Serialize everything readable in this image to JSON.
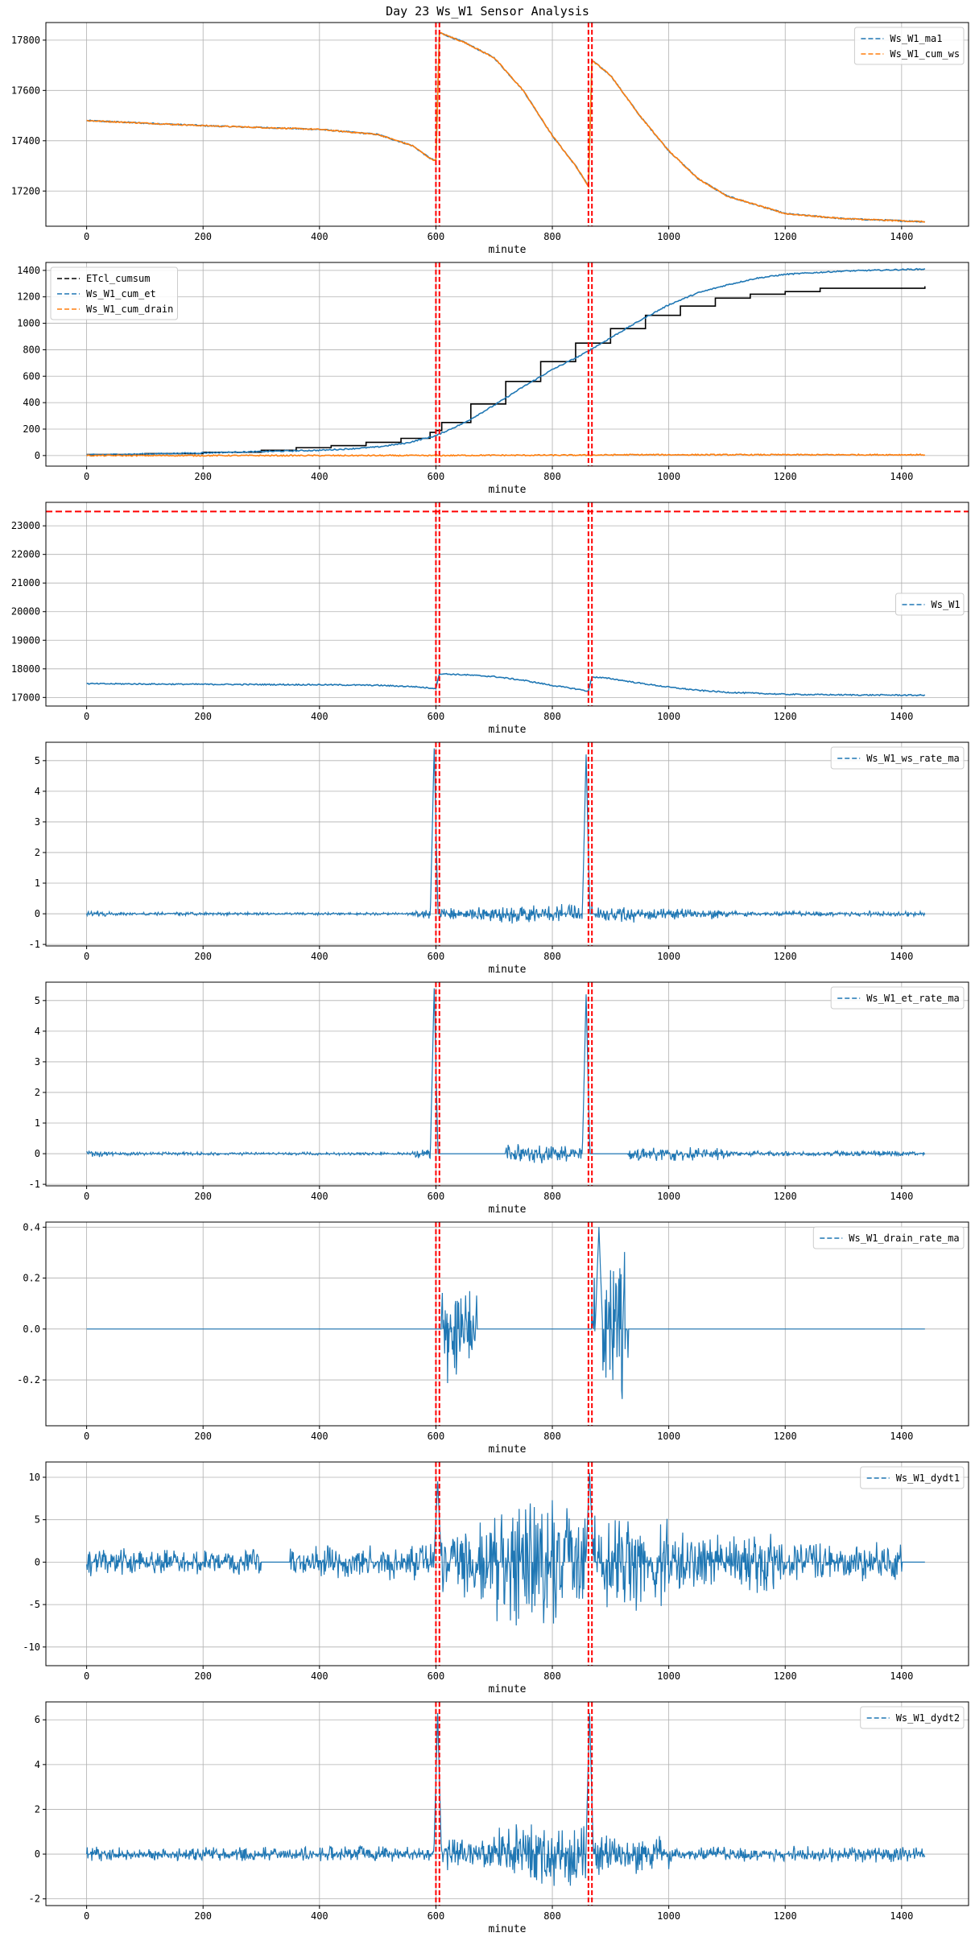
{
  "page_title": "Day 23 Ws_W1 Sensor Analysis",
  "colors": {
    "blue": "#1f77b4",
    "orange": "#ff7f0e",
    "black": "#000000",
    "red": "#ff0000",
    "grid": "#b0b0b0"
  },
  "chart_data": [
    {
      "type": "line",
      "xlabel": "minute",
      "xlim": [
        -70,
        1515
      ],
      "xticks": [
        0,
        200,
        400,
        600,
        800,
        1000,
        1200,
        1400
      ],
      "ylim": [
        17060,
        17870
      ],
      "yticks": [
        17200,
        17400,
        17600,
        17800
      ],
      "legend_position": "upper right",
      "vlines": [
        600,
        606,
        862,
        868
      ],
      "series": [
        {
          "name": "Ws_W1_ma1",
          "color": "#1f77b4",
          "style": "dashed",
          "points": [
            [
              0,
              17480
            ],
            [
              200,
              17460
            ],
            [
              400,
              17445
            ],
            [
              500,
              17425
            ],
            [
              560,
              17380
            ],
            [
              590,
              17330
            ],
            [
              600,
              17320
            ],
            [
              606,
              17830
            ],
            [
              650,
              17790
            ],
            [
              700,
              17730
            ],
            [
              750,
              17600
            ],
            [
              800,
              17420
            ],
            [
              840,
              17300
            ],
            [
              862,
              17220
            ],
            [
              868,
              17720
            ],
            [
              900,
              17660
            ],
            [
              950,
              17500
            ],
            [
              1000,
              17360
            ],
            [
              1050,
              17250
            ],
            [
              1100,
              17180
            ],
            [
              1200,
              17110
            ],
            [
              1300,
              17090
            ],
            [
              1440,
              17078
            ]
          ]
        },
        {
          "name": "Ws_W1_cum_ws",
          "color": "#ff7f0e",
          "style": "dashed",
          "points": [
            [
              0,
              17480
            ],
            [
              200,
              17460
            ],
            [
              400,
              17445
            ],
            [
              500,
              17425
            ],
            [
              560,
              17380
            ],
            [
              590,
              17330
            ],
            [
              600,
              17320
            ],
            [
              606,
              17830
            ],
            [
              650,
              17790
            ],
            [
              700,
              17730
            ],
            [
              750,
              17600
            ],
            [
              800,
              17420
            ],
            [
              840,
              17300
            ],
            [
              862,
              17220
            ],
            [
              868,
              17720
            ],
            [
              900,
              17660
            ],
            [
              950,
              17500
            ],
            [
              1000,
              17360
            ],
            [
              1050,
              17250
            ],
            [
              1100,
              17180
            ],
            [
              1200,
              17110
            ],
            [
              1300,
              17090
            ],
            [
              1440,
              17078
            ]
          ]
        }
      ]
    },
    {
      "type": "line",
      "xlabel": "minute",
      "xlim": [
        -70,
        1515
      ],
      "xticks": [
        0,
        200,
        400,
        600,
        800,
        1000,
        1200,
        1400
      ],
      "ylim": [
        -80,
        1460
      ],
      "yticks": [
        0,
        200,
        400,
        600,
        800,
        1000,
        1200,
        1400
      ],
      "legend_position": "upper left",
      "vlines": [
        600,
        606,
        862,
        868
      ],
      "series": [
        {
          "name": "ETcl_cumsum",
          "color": "#000000",
          "style": "dashed",
          "steps": [
            [
              0,
              8
            ],
            [
              100,
              15
            ],
            [
              200,
              25
            ],
            [
              300,
              40
            ],
            [
              360,
              60
            ],
            [
              420,
              75
            ],
            [
              480,
              100
            ],
            [
              540,
              130
            ],
            [
              590,
              175
            ],
            [
              600,
              190
            ],
            [
              610,
              250
            ],
            [
              660,
              390
            ],
            [
              720,
              560
            ],
            [
              780,
              710
            ],
            [
              840,
              850
            ],
            [
              900,
              960
            ],
            [
              960,
              1060
            ],
            [
              1020,
              1130
            ],
            [
              1080,
              1190
            ],
            [
              1140,
              1220
            ],
            [
              1200,
              1240
            ],
            [
              1260,
              1265
            ],
            [
              1440,
              1280
            ]
          ]
        },
        {
          "name": "Ws_W1_cum_et",
          "color": "#1f77b4",
          "style": "dashed",
          "points": [
            [
              0,
              5
            ],
            [
              100,
              12
            ],
            [
              200,
              20
            ],
            [
              300,
              30
            ],
            [
              400,
              40
            ],
            [
              450,
              50
            ],
            [
              500,
              65
            ],
            [
              550,
              95
            ],
            [
              600,
              150
            ],
            [
              650,
              250
            ],
            [
              700,
              380
            ],
            [
              750,
              520
            ],
            [
              800,
              650
            ],
            [
              850,
              760
            ],
            [
              900,
              890
            ],
            [
              950,
              1020
            ],
            [
              1000,
              1140
            ],
            [
              1050,
              1230
            ],
            [
              1100,
              1290
            ],
            [
              1150,
              1340
            ],
            [
              1200,
              1370
            ],
            [
              1300,
              1395
            ],
            [
              1440,
              1410
            ]
          ]
        },
        {
          "name": "Ws_W1_cum_drain",
          "color": "#ff7f0e",
          "style": "dashed",
          "points": [
            [
              0,
              0
            ],
            [
              600,
              0
            ],
            [
              670,
              2
            ],
            [
              860,
              3
            ],
            [
              930,
              6
            ],
            [
              1440,
              6
            ]
          ]
        }
      ]
    },
    {
      "type": "line",
      "xlabel": "minute",
      "xlim": [
        -70,
        1515
      ],
      "xticks": [
        0,
        200,
        400,
        600,
        800,
        1000,
        1200,
        1400
      ],
      "ylim": [
        16700,
        23820
      ],
      "yticks": [
        17000,
        18000,
        19000,
        20000,
        21000,
        22000,
        23000
      ],
      "legend_position": "center right",
      "vlines": [
        600,
        606,
        862,
        868
      ],
      "hlines": [
        23500
      ],
      "series": [
        {
          "name": "Ws_W1",
          "color": "#1f77b4",
          "style": "dashed",
          "points": [
            [
              0,
              17480
            ],
            [
              200,
              17460
            ],
            [
              400,
              17445
            ],
            [
              500,
              17425
            ],
            [
              560,
              17380
            ],
            [
              590,
              17330
            ],
            [
              600,
              17320
            ],
            [
              606,
              17830
            ],
            [
              650,
              17790
            ],
            [
              700,
              17730
            ],
            [
              750,
              17600
            ],
            [
              800,
              17420
            ],
            [
              840,
              17300
            ],
            [
              862,
              17220
            ],
            [
              868,
              17720
            ],
            [
              900,
              17660
            ],
            [
              950,
              17500
            ],
            [
              1000,
              17360
            ],
            [
              1050,
              17250
            ],
            [
              1100,
              17180
            ],
            [
              1200,
              17110
            ],
            [
              1300,
              17090
            ],
            [
              1440,
              17078
            ]
          ]
        }
      ]
    },
    {
      "type": "line",
      "xlabel": "minute",
      "xlim": [
        -70,
        1515
      ],
      "xticks": [
        0,
        200,
        400,
        600,
        800,
        1000,
        1200,
        1400
      ],
      "ylim": [
        -1.05,
        5.6
      ],
      "yticks": [
        -1,
        0,
        1,
        2,
        3,
        4,
        5
      ],
      "legend_position": "upper right",
      "vlines": [
        600,
        606,
        862,
        868
      ],
      "series": [
        {
          "name": "Ws_W1_ws_rate_ma",
          "color": "#1f77b4",
          "style": "dashed",
          "noise": [
            [
              0,
              40,
              0.12
            ],
            [
              40,
              300,
              0.06
            ],
            [
              300,
              560,
              0.05
            ],
            [
              560,
              600,
              0.18
            ],
            [
              606,
              700,
              0.25
            ],
            [
              700,
              862,
              0.35
            ],
            [
              868,
              940,
              0.3
            ],
            [
              940,
              1100,
              0.2
            ],
            [
              1100,
              1440,
              0.1
            ]
          ],
          "spikes": [
            [
              597,
              5.4
            ],
            [
              858,
              5.2
            ]
          ]
        }
      ]
    },
    {
      "type": "line",
      "xlabel": "minute",
      "xlim": [
        -70,
        1515
      ],
      "xticks": [
        0,
        200,
        400,
        600,
        800,
        1000,
        1200,
        1400
      ],
      "ylim": [
        -1.05,
        5.6
      ],
      "yticks": [
        -1,
        0,
        1,
        2,
        3,
        4,
        5
      ],
      "legend_position": "upper right",
      "vlines": [
        600,
        606,
        862,
        868
      ],
      "series": [
        {
          "name": "Ws_W1_et_rate_ma",
          "color": "#1f77b4",
          "style": "dashed",
          "noise": [
            [
              0,
              40,
              0.12
            ],
            [
              40,
              300,
              0.06
            ],
            [
              300,
              560,
              0.05
            ],
            [
              560,
              600,
              0.18
            ],
            [
              720,
              862,
              0.35
            ],
            [
              930,
              1100,
              0.25
            ],
            [
              1100,
              1440,
              0.1
            ]
          ],
          "spikes": [
            [
              597,
              5.4
            ],
            [
              858,
              5.2
            ]
          ]
        }
      ]
    },
    {
      "type": "line",
      "xlabel": "minute",
      "xlim": [
        -70,
        1515
      ],
      "xticks": [
        0,
        200,
        400,
        600,
        800,
        1000,
        1200,
        1400
      ],
      "ylim": [
        -0.38,
        0.42
      ],
      "yticks": [
        -0.2,
        0.0,
        0.2,
        0.4
      ],
      "legend_position": "upper right",
      "vlines": [
        600,
        606,
        862,
        868
      ],
      "series": [
        {
          "name": "Ws_W1_drain_rate_ma",
          "color": "#1f77b4",
          "style": "dashed",
          "noise": [
            [
              610,
              670,
              0.23
            ],
            [
              868,
              930,
              0.35
            ]
          ],
          "spikes": [
            [
              880,
              0.4
            ]
          ]
        }
      ]
    },
    {
      "type": "line",
      "xlabel": "minute",
      "xlim": [
        -70,
        1515
      ],
      "xticks": [
        0,
        200,
        400,
        600,
        800,
        1000,
        1200,
        1400
      ],
      "ylim": [
        -12.2,
        11.8
      ],
      "yticks": [
        -10,
        -5,
        0,
        5,
        10
      ],
      "legend_position": "upper right",
      "vlines": [
        600,
        606,
        862,
        868
      ],
      "series": [
        {
          "name": "Ws_W1_dydt1",
          "color": "#1f77b4",
          "style": "dashed",
          "noise": [
            [
              0,
              60,
              2
            ],
            [
              60,
              300,
              1.8
            ],
            [
              350,
              600,
              2.2
            ],
            [
              606,
              700,
              5
            ],
            [
              700,
              860,
              8
            ],
            [
              868,
              1000,
              6
            ],
            [
              1000,
              1200,
              4
            ],
            [
              1200,
              1400,
              2.5
            ]
          ],
          "spikes": [
            [
              603,
              9.5
            ],
            [
              864,
              10.5
            ]
          ]
        }
      ]
    },
    {
      "type": "line",
      "xlabel": "minute",
      "xlim": [
        -70,
        1515
      ],
      "xticks": [
        0,
        200,
        400,
        600,
        800,
        1000,
        1200,
        1400
      ],
      "ylim": [
        -2.3,
        6.8
      ],
      "yticks": [
        -2,
        0,
        2,
        4,
        6
      ],
      "legend_position": "upper right",
      "vlines": [
        600,
        606,
        862,
        868
      ],
      "series": [
        {
          "name": "Ws_W1_dydt2",
          "color": "#1f77b4",
          "style": "dashed",
          "noise": [
            [
              0,
              60,
              0.4
            ],
            [
              60,
              350,
              0.35
            ],
            [
              350,
              600,
              0.4
            ],
            [
              606,
              700,
              0.8
            ],
            [
              700,
              860,
              1.5
            ],
            [
              868,
              1000,
              1.0
            ],
            [
              1000,
              1440,
              0.4
            ]
          ],
          "spikes": [
            [
              603,
              6.3
            ],
            [
              864,
              6.3
            ]
          ]
        }
      ]
    }
  ]
}
